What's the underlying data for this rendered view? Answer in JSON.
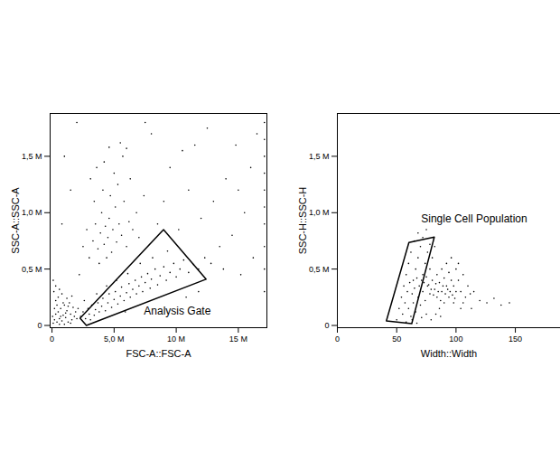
{
  "chart_data": [
    {
      "type": "scatter",
      "x_label": "FSC-A::FSC-A",
      "y_label": "SSC-A::SSC-A",
      "color": "#000000",
      "grid": false,
      "xlim": [
        -0.15,
        17.3
      ],
      "ylim": [
        -0.02,
        1.88
      ],
      "xticks": [
        {
          "value": 0,
          "label": "0"
        },
        {
          "value": 5,
          "label": "5,0 M"
        },
        {
          "value": 10,
          "label": "10 M"
        },
        {
          "value": 15,
          "label": "15 M"
        }
      ],
      "yticks": [
        {
          "value": 0,
          "label": "0"
        },
        {
          "value": 0.5,
          "label": "0,5 M"
        },
        {
          "value": 1.0,
          "label": "1,0 M"
        },
        {
          "value": 1.5,
          "label": "1,5 M"
        }
      ],
      "gates": [
        {
          "label": "Analysis Gate",
          "vertices": [
            [
              2.26,
              0.064
            ],
            [
              8.98,
              0.85
            ],
            [
              12.4,
              0.41
            ],
            [
              2.77,
              0.0
            ]
          ],
          "label_x": 7.4,
          "label_y": 0.064
        }
      ],
      "points": [
        [
          0.1,
          0.02
        ],
        [
          0.2,
          0.05
        ],
        [
          0.3,
          0.1
        ],
        [
          0.4,
          0.03
        ],
        [
          0.5,
          0.12
        ],
        [
          0.6,
          0.06
        ],
        [
          0.7,
          0.15
        ],
        [
          0.8,
          0.04
        ],
        [
          0.9,
          0.09
        ],
        [
          1.0,
          0.18
        ],
        [
          1.1,
          0.07
        ],
        [
          1.2,
          0.13
        ],
        [
          1.3,
          0.03
        ],
        [
          1.4,
          0.2
        ],
        [
          1.5,
          0.1
        ],
        [
          1.6,
          0.05
        ],
        [
          1.7,
          0.16
        ],
        [
          1.8,
          0.08
        ],
        [
          0.2,
          0.15
        ],
        [
          0.3,
          0.22
        ],
        [
          0.5,
          0.25
        ],
        [
          0.6,
          0.01
        ],
        [
          0.8,
          0.28
        ],
        [
          1.0,
          0.01
        ],
        [
          1.2,
          0.24
        ],
        [
          0.15,
          0.3
        ],
        [
          0.4,
          0.18
        ],
        [
          0.7,
          0.08
        ],
        [
          0.9,
          0.2
        ],
        [
          1.1,
          0.11
        ],
        [
          1.3,
          0.17
        ],
        [
          1.5,
          0.02
        ],
        [
          1.9,
          0.12
        ],
        [
          2.0,
          0.06
        ],
        [
          0.05,
          0.08
        ],
        [
          0.1,
          0.4
        ],
        [
          0.3,
          0.35
        ],
        [
          0.6,
          0.32
        ],
        [
          1.6,
          0.26
        ],
        [
          2.1,
          0.15
        ],
        [
          2.3,
          0.08
        ],
        [
          2.5,
          0.12
        ],
        [
          2.7,
          0.06
        ],
        [
          2.9,
          0.15
        ],
        [
          3.0,
          0.1
        ],
        [
          3.2,
          0.18
        ],
        [
          3.4,
          0.09
        ],
        [
          3.5,
          0.14
        ],
        [
          3.7,
          0.2
        ],
        [
          3.8,
          0.12
        ],
        [
          4.0,
          0.17
        ],
        [
          4.1,
          0.24
        ],
        [
          4.3,
          0.13
        ],
        [
          4.5,
          0.2
        ],
        [
          4.6,
          0.28
        ],
        [
          4.8,
          0.16
        ],
        [
          5.0,
          0.23
        ],
        [
          5.1,
          0.3
        ],
        [
          5.3,
          0.19
        ],
        [
          5.5,
          0.26
        ],
        [
          5.6,
          0.34
        ],
        [
          5.8,
          0.22
        ],
        [
          6.0,
          0.29
        ],
        [
          6.2,
          0.37
        ],
        [
          6.3,
          0.25
        ],
        [
          6.5,
          0.32
        ],
        [
          6.7,
          0.4
        ],
        [
          6.8,
          0.28
        ],
        [
          7.0,
          0.35
        ],
        [
          7.2,
          0.43
        ],
        [
          7.3,
          0.3
        ],
        [
          7.5,
          0.38
        ],
        [
          7.7,
          0.46
        ],
        [
          7.9,
          0.33
        ],
        [
          8.0,
          0.41
        ],
        [
          8.3,
          0.5
        ],
        [
          8.5,
          0.36
        ],
        [
          8.7,
          0.44
        ],
        [
          9.0,
          0.52
        ],
        [
          9.2,
          0.4
        ],
        [
          9.5,
          0.47
        ],
        [
          9.8,
          0.55
        ],
        [
          10.0,
          0.43
        ],
        [
          10.3,
          0.5
        ],
        [
          10.6,
          0.58
        ],
        [
          11.0,
          0.47
        ],
        [
          11.4,
          0.54
        ],
        [
          11.8,
          0.5
        ],
        [
          12.3,
          0.6
        ],
        [
          12.8,
          0.55
        ],
        [
          4.4,
          0.35
        ],
        [
          5.2,
          0.4
        ],
        [
          6.1,
          0.46
        ],
        [
          3.6,
          0.28
        ],
        [
          7.1,
          0.55
        ],
        [
          8.1,
          0.6
        ],
        [
          9.3,
          0.66
        ],
        [
          2.6,
          0.22
        ],
        [
          3.1,
          0.05
        ],
        [
          5.9,
          0.12
        ],
        [
          3.0,
          0.6
        ],
        [
          3.3,
          0.75
        ],
        [
          3.5,
          0.9
        ],
        [
          3.7,
          0.68
        ],
        [
          3.9,
          0.82
        ],
        [
          4.0,
          1.0
        ],
        [
          4.2,
          0.72
        ],
        [
          4.3,
          0.88
        ],
        [
          4.5,
          0.78
        ],
        [
          4.6,
          0.95
        ],
        [
          4.8,
          0.65
        ],
        [
          4.9,
          0.85
        ],
        [
          5.1,
          1.05
        ],
        [
          5.2,
          0.74
        ],
        [
          5.4,
          0.9
        ],
        [
          5.6,
          0.8
        ],
        [
          5.8,
          1.1
        ],
        [
          6.0,
          0.7
        ],
        [
          6.2,
          0.92
        ],
        [
          6.5,
          0.85
        ],
        [
          3.4,
          1.1
        ],
        [
          4.1,
          1.2
        ],
        [
          4.7,
          1.15
        ],
        [
          5.3,
          1.25
        ],
        [
          3.8,
          0.55
        ],
        [
          4.4,
          0.6
        ],
        [
          2.8,
          0.85
        ],
        [
          2.5,
          0.7
        ],
        [
          6.8,
          1.0
        ],
        [
          7.0,
          0.78
        ],
        [
          5.0,
          1.35
        ],
        [
          4.2,
          1.45
        ],
        [
          5.7,
          1.5
        ],
        [
          6.3,
          1.3
        ],
        [
          3.1,
          1.3
        ],
        [
          7.4,
          1.15
        ],
        [
          4.6,
          1.58
        ],
        [
          5.5,
          1.62
        ],
        [
          6.0,
          1.57
        ],
        [
          3.6,
          1.4
        ],
        [
          8.5,
          0.9
        ],
        [
          9.0,
          1.1
        ],
        [
          10.2,
          0.85
        ],
        [
          11.0,
          1.2
        ],
        [
          12.0,
          0.95
        ],
        [
          13.0,
          1.1
        ],
        [
          14.0,
          1.3
        ],
        [
          15.0,
          1.2
        ],
        [
          16.0,
          1.4
        ],
        [
          13.5,
          0.7
        ],
        [
          14.5,
          0.8
        ],
        [
          15.5,
          1.0
        ],
        [
          9.5,
          1.4
        ],
        [
          10.5,
          1.55
        ],
        [
          8.0,
          1.7
        ],
        [
          11.5,
          1.6
        ],
        [
          2.0,
          1.8
        ],
        [
          1.5,
          1.2
        ],
        [
          0.8,
          0.9
        ],
        [
          1.0,
          1.5
        ],
        [
          7.5,
          1.8
        ],
        [
          12.5,
          1.75
        ],
        [
          14.8,
          1.6
        ],
        [
          16.5,
          1.7
        ],
        [
          13.8,
          0.5
        ],
        [
          15.2,
          0.45
        ],
        [
          16.2,
          0.6
        ],
        [
          11.8,
          0.3
        ],
        [
          10.8,
          0.25
        ],
        [
          2.2,
          0.45
        ],
        [
          17.1,
          0.3
        ],
        [
          17.1,
          0.5
        ],
        [
          17.1,
          0.7
        ],
        [
          17.1,
          0.9
        ],
        [
          17.1,
          1.05
        ],
        [
          17.1,
          1.2
        ],
        [
          17.1,
          1.35
        ],
        [
          17.1,
          1.5
        ],
        [
          17.1,
          1.65
        ],
        [
          17.1,
          1.8
        ]
      ]
    },
    {
      "type": "scatter",
      "x_label": "Width::Width",
      "y_label": "SSC-H::SSC-H",
      "color": "#000000",
      "grid": false,
      "xlim": [
        0,
        188
      ],
      "ylim": [
        -0.02,
        1.88
      ],
      "xticks": [
        0,
        50,
        100,
        150
      ],
      "yticks": [
        {
          "value": 0,
          "label": "0"
        },
        {
          "value": 0.5,
          "label": "0,5 M"
        },
        {
          "value": 1.0,
          "label": "1,0 M"
        },
        {
          "value": 1.5,
          "label": "1,5 M"
        }
      ],
      "gates": [
        {
          "label": "Single Cell Population",
          "vertices": [
            [
              41.3,
              0.04
            ],
            [
              60.3,
              0.736
            ],
            [
              81.7,
              0.784
            ],
            [
              62.7,
              0.016
            ]
          ],
          "label_x": 70.6,
          "label_y": 0.88
        }
      ],
      "points": [
        [
          50,
          0.05
        ],
        [
          55,
          0.1
        ],
        [
          58,
          0.03
        ],
        [
          60,
          0.15
        ],
        [
          62,
          0.08
        ],
        [
          64,
          0.2
        ],
        [
          66,
          0.12
        ],
        [
          68,
          0.25
        ],
        [
          70,
          0.18
        ],
        [
          72,
          0.3
        ],
        [
          74,
          0.22
        ],
        [
          76,
          0.35
        ],
        [
          78,
          0.28
        ],
        [
          80,
          0.4
        ],
        [
          82,
          0.32
        ],
        [
          84,
          0.45
        ],
        [
          86,
          0.38
        ],
        [
          88,
          0.5
        ],
        [
          90,
          0.42
        ],
        [
          92,
          0.55
        ],
        [
          94,
          0.47
        ],
        [
          96,
          0.6
        ],
        [
          98,
          0.35
        ],
        [
          100,
          0.5
        ],
        [
          102,
          0.4
        ],
        [
          104,
          0.3
        ],
        [
          106,
          0.45
        ],
        [
          108,
          0.25
        ],
        [
          52,
          0.15
        ],
        [
          54,
          0.25
        ],
        [
          56,
          0.35
        ],
        [
          58,
          0.45
        ],
        [
          60,
          0.55
        ],
        [
          62,
          0.65
        ],
        [
          64,
          0.4
        ],
        [
          66,
          0.5
        ],
        [
          68,
          0.6
        ],
        [
          70,
          0.7
        ],
        [
          72,
          0.45
        ],
        [
          74,
          0.55
        ],
        [
          76,
          0.65
        ],
        [
          78,
          0.5
        ],
        [
          80,
          0.6
        ],
        [
          82,
          0.7
        ],
        [
          84,
          0.25
        ],
        [
          86,
          0.15
        ],
        [
          88,
          0.3
        ],
        [
          90,
          0.2
        ],
        [
          92,
          0.35
        ],
        [
          94,
          0.25
        ],
        [
          96,
          0.4
        ],
        [
          98,
          0.2
        ],
        [
          100,
          0.3
        ],
        [
          102,
          0.55
        ],
        [
          104,
          0.15
        ],
        [
          106,
          0.2
        ],
        [
          57,
          0.2
        ],
        [
          59,
          0.3
        ],
        [
          61,
          0.38
        ],
        [
          63,
          0.28
        ],
        [
          65,
          0.33
        ],
        [
          67,
          0.42
        ],
        [
          69,
          0.35
        ],
        [
          71,
          0.4
        ],
        [
          73,
          0.38
        ],
        [
          75,
          0.43
        ],
        [
          77,
          0.36
        ],
        [
          79,
          0.32
        ],
        [
          81,
          0.27
        ],
        [
          83,
          0.37
        ],
        [
          85,
          0.3
        ],
        [
          87,
          0.22
        ],
        [
          89,
          0.35
        ],
        [
          91,
          0.28
        ],
        [
          93,
          0.32
        ],
        [
          95,
          0.3
        ],
        [
          97,
          0.27
        ],
        [
          99,
          0.24
        ],
        [
          65,
          0.75
        ],
        [
          68,
          0.82
        ],
        [
          72,
          0.78
        ],
        [
          75,
          0.85
        ],
        [
          78,
          0.72
        ],
        [
          63,
          0.05
        ],
        [
          67,
          0.02
        ],
        [
          71,
          0.07
        ],
        [
          75,
          0.1
        ],
        [
          79,
          0.05
        ],
        [
          83,
          0.1
        ],
        [
          87,
          0.08
        ],
        [
          110,
          0.35
        ],
        [
          112,
          0.28
        ],
        [
          115,
          0.3
        ],
        [
          120,
          0.22
        ],
        [
          126,
          0.2
        ],
        [
          132,
          0.24
        ],
        [
          138,
          0.18
        ],
        [
          145,
          0.2
        ],
        [
          113,
          0.15
        ]
      ]
    }
  ]
}
